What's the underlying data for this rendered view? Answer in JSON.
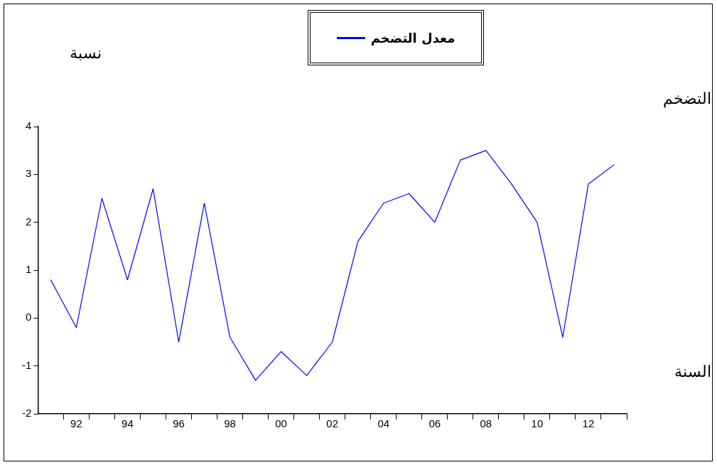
{
  "chart_data": {
    "type": "line",
    "xlabel": "السنة",
    "ylabel": "نسبة",
    "annotations": [
      "التضخم"
    ],
    "x": [
      1991,
      1992,
      1993,
      1994,
      1995,
      1996,
      1997,
      1998,
      1999,
      2000,
      2001,
      2002,
      2003,
      2004,
      2005,
      2006,
      2007,
      2008,
      2009,
      2010,
      2011,
      2012,
      2013
    ],
    "series": [
      {
        "name": "معدل التضخم",
        "color": "#0000ff",
        "values": [
          0.8,
          -0.2,
          2.5,
          0.8,
          2.7,
          -0.5,
          2.4,
          -0.4,
          -1.3,
          -0.7,
          -1.2,
          -0.5,
          1.6,
          2.4,
          2.6,
          2.0,
          3.3,
          3.5,
          2.8,
          2.0,
          -0.4,
          2.8,
          3.2
        ]
      }
    ],
    "xlim": [
      1990.5,
      2013.5
    ],
    "xticks": [
      {
        "value": 1991.5,
        "label": null
      },
      {
        "value": 1992,
        "label": "92"
      },
      {
        "value": 1992.5,
        "label": null
      },
      {
        "value": 1993.5,
        "label": null
      },
      {
        "value": 1994,
        "label": "94"
      },
      {
        "value": 1994.5,
        "label": null
      },
      {
        "value": 1995.5,
        "label": null
      },
      {
        "value": 1996,
        "label": "96"
      },
      {
        "value": 1996.5,
        "label": null
      },
      {
        "value": 1997.5,
        "label": null
      },
      {
        "value": 1998,
        "label": "98"
      },
      {
        "value": 1998.5,
        "label": null
      },
      {
        "value": 1999.5,
        "label": null
      },
      {
        "value": 2000,
        "label": "00"
      },
      {
        "value": 2000.5,
        "label": null
      },
      {
        "value": 2001.5,
        "label": null
      },
      {
        "value": 2002,
        "label": "02"
      },
      {
        "value": 2002.5,
        "label": null
      },
      {
        "value": 2003.5,
        "label": null
      },
      {
        "value": 2004,
        "label": "04"
      },
      {
        "value": 2004.5,
        "label": null
      },
      {
        "value": 2005.5,
        "label": null
      },
      {
        "value": 2006,
        "label": "06"
      },
      {
        "value": 2006.5,
        "label": null
      },
      {
        "value": 2007.5,
        "label": null
      },
      {
        "value": 2008,
        "label": "08"
      },
      {
        "value": 2008.5,
        "label": null
      },
      {
        "value": 2009.5,
        "label": null
      },
      {
        "value": 2010,
        "label": "10"
      },
      {
        "value": 2010.5,
        "label": null
      },
      {
        "value": 2011.5,
        "label": null
      },
      {
        "value": 2012,
        "label": "12"
      },
      {
        "value": 2012.5,
        "label": null
      },
      {
        "value": 2013.5,
        "label": null
      }
    ],
    "ylim": [
      -2,
      4
    ],
    "yticks": [
      -2,
      -1,
      0,
      1,
      2,
      3,
      4
    ],
    "grid": false,
    "legend": "top",
    "marker": "none",
    "line_style": "solid"
  }
}
